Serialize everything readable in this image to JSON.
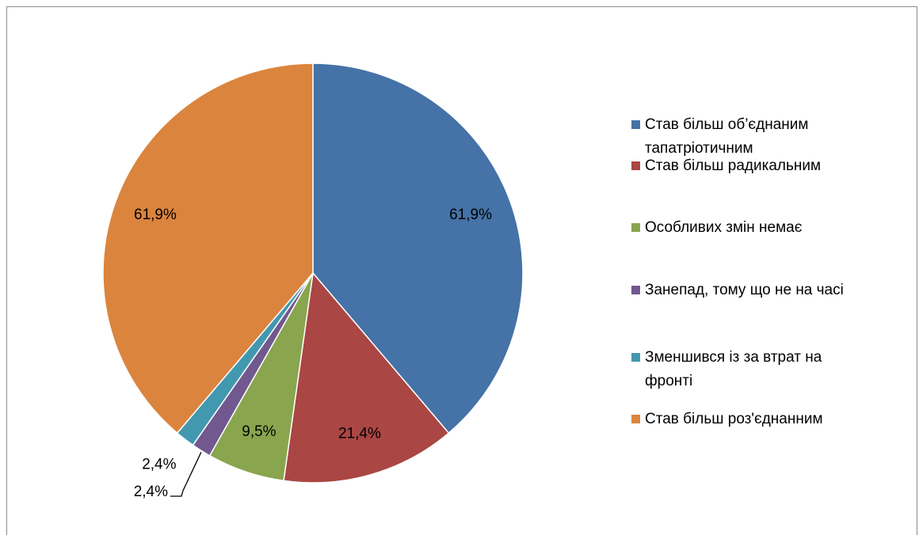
{
  "chart_data": {
    "type": "pie",
    "title": "",
    "slices": [
      {
        "label": "Став більш об’єднаним тапатріотичним",
        "label_lines": [
          "Став більш об’єднаним",
          "тапатріотичним"
        ],
        "value": 61.9,
        "display": "61,9%",
        "color": "#4572A7"
      },
      {
        "label": "Став більш радикальним",
        "label_lines": [
          "Став більш радикальним"
        ],
        "value": 21.4,
        "display": "21,4%",
        "color": "#AA4643"
      },
      {
        "label": "Особливих змін немає",
        "label_lines": [
          "Особливих змін немає"
        ],
        "value": 9.5,
        "display": "9,5%",
        "color": "#89A54E"
      },
      {
        "label": "Занепад, тому що не на часі",
        "label_lines": [
          "Занепад, тому що не на часі"
        ],
        "value": 2.4,
        "display": "2,4%",
        "color": "#71588F"
      },
      {
        "label": "Зменшився із за втрат на фронті",
        "label_lines": [
          "Зменшився із за втрат на",
          "фронті"
        ],
        "value": 2.4,
        "display": "2,4%",
        "color": "#4198AF"
      },
      {
        "label": "Став більш роз'єднанним",
        "label_lines": [
          "Став більш роз'єднанним"
        ],
        "value": 61.9,
        "display": "61,9%",
        "color": "#DB843D"
      }
    ],
    "legend_position": "right"
  }
}
